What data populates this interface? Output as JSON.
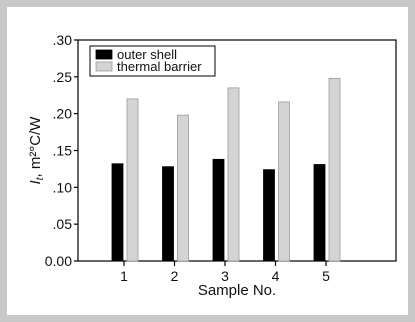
{
  "chart_data": {
    "type": "bar",
    "categories": [
      "1",
      "2",
      "3",
      "4",
      "5"
    ],
    "series": [
      {
        "name": "outer shell",
        "values": [
          0.132,
          0.128,
          0.138,
          0.124,
          0.131
        ],
        "color": "#000000"
      },
      {
        "name": "thermal barrier",
        "values": [
          0.22,
          0.198,
          0.235,
          0.216,
          0.248
        ],
        "color": "#d4d4d4"
      }
    ],
    "xlabel": "Sample No.",
    "ylabel_main": "I",
    "ylabel_sub": "t",
    "ylabel_unit": ", m²°C/W",
    "ylim": [
      0,
      0.3
    ],
    "yticks": [
      ".30",
      ".25",
      ".20",
      ".15",
      ".10",
      ".05",
      "0.00"
    ],
    "ytick_values": [
      0.3,
      0.25,
      0.2,
      0.15,
      0.1,
      0.05,
      0.0
    ],
    "grid": false,
    "legend_position": "top-left"
  }
}
